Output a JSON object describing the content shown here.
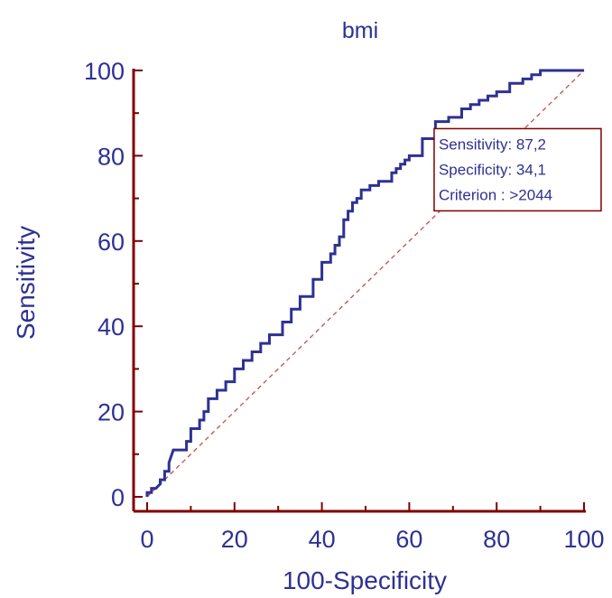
{
  "chart_data": {
    "type": "line",
    "title": "bmi",
    "xlabel": "100-Specificity",
    "ylabel": "Sensitivity",
    "xlim": [
      0,
      100
    ],
    "ylim": [
      0,
      100
    ],
    "xticks": [
      "0",
      "20",
      "40",
      "60",
      "80",
      "100"
    ],
    "yticks": [
      "0",
      "20",
      "40",
      "60",
      "80",
      "100"
    ],
    "grid": false,
    "colors": {
      "curve": "#2e3192",
      "diagonal": "#c0504d",
      "axis": "#800000",
      "annotation_border": "#800000",
      "text": "#2e3192"
    },
    "series": [
      {
        "values_x": [
          0,
          0,
          1,
          1,
          2,
          3,
          3,
          4,
          4,
          5,
          5,
          6,
          9,
          9,
          10,
          10,
          12,
          12,
          13,
          13,
          14,
          14,
          16,
          16,
          18,
          18,
          20,
          20,
          22,
          22,
          24,
          24,
          26,
          26,
          28,
          28,
          31,
          31,
          33,
          33,
          35,
          35,
          38,
          38,
          40,
          40,
          42,
          42,
          43,
          43,
          44,
          44,
          45,
          45,
          46,
          46,
          47,
          47,
          48,
          48,
          49,
          49,
          51,
          51,
          53,
          53,
          56,
          56,
          57,
          57,
          58,
          58,
          59,
          59,
          60,
          60,
          63,
          63,
          66,
          66,
          69,
          69,
          72,
          72,
          74,
          74,
          76,
          76,
          78,
          78,
          80,
          80,
          83,
          83,
          86,
          86,
          88,
          88,
          90,
          90,
          100
        ],
        "values_y": [
          0,
          1,
          1,
          2,
          2,
          3,
          4,
          4,
          6,
          6,
          8,
          11,
          11,
          13,
          13,
          16,
          16,
          18,
          18,
          20,
          20,
          23,
          23,
          25,
          25,
          27,
          27,
          30,
          30,
          32,
          32,
          34,
          34,
          36,
          36,
          38,
          38,
          41,
          41,
          44,
          44,
          47,
          47,
          51,
          51,
          55,
          55,
          57,
          57,
          59,
          59,
          61,
          61,
          65,
          65,
          67,
          67,
          69,
          69,
          70,
          70,
          72,
          72,
          73,
          73,
          74,
          74,
          76,
          76,
          77,
          77,
          78,
          78,
          79,
          79,
          80,
          80,
          84,
          84,
          88,
          88,
          89,
          89,
          91,
          91,
          92,
          92,
          93,
          93,
          94,
          94,
          95,
          95,
          97,
          97,
          98,
          98,
          99,
          99,
          100,
          100
        ]
      }
    ],
    "diagonal": [
      [
        0,
        0
      ],
      [
        100,
        100
      ]
    ],
    "annotation": {
      "lines": [
        "Sensitivity: 87,2",
        "Specificity: 34,1",
        "Criterion : >2044"
      ],
      "x": 65.9,
      "y": 87.2
    }
  }
}
